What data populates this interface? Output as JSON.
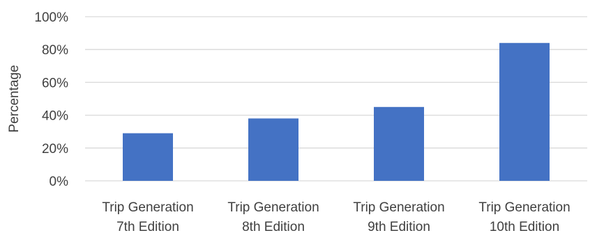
{
  "chart_data": {
    "type": "bar",
    "categories": [
      [
        "Trip Generation",
        "7th Edition"
      ],
      [
        "Trip Generation",
        "8th Edition"
      ],
      [
        "Trip Generation",
        "9th Edition"
      ],
      [
        "Trip Generation",
        "10th Edition"
      ]
    ],
    "values": [
      29,
      38,
      45,
      84
    ],
    "ylabel": "Percentage",
    "ylim": [
      0,
      100
    ],
    "yticks": [
      0,
      20,
      40,
      60,
      80,
      100
    ],
    "ytick_labels": [
      "0%",
      "20%",
      "40%",
      "60%",
      "80%",
      "100%"
    ],
    "grid": true,
    "legend": "none",
    "bar_color": "#4472C4",
    "grid_color": "#D9D9D9"
  }
}
